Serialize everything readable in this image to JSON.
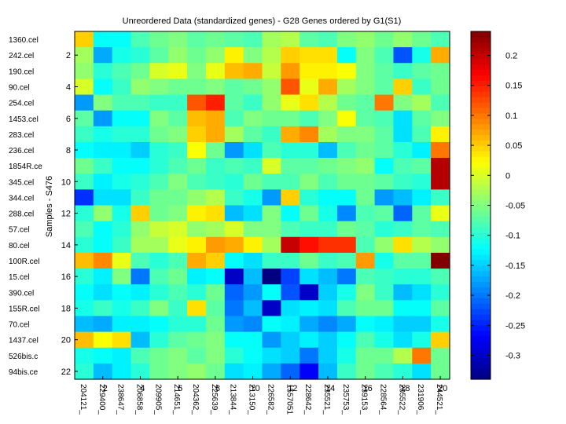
{
  "chart_data": {
    "type": "heatmap",
    "title": "Unreordered Data (standardized genes) - G28 Genes ordered by G1(S1)",
    "ylabel": "Samples - S476",
    "xlabel": "",
    "colormap": "jet",
    "clim": [
      -0.34,
      0.24
    ],
    "colorbar_ticks": [
      0.2,
      0.15,
      0.1,
      0.05,
      0,
      -0.05,
      -0.1,
      -0.15,
      -0.2,
      -0.25,
      -0.3
    ],
    "colorbar_tick_labels": [
      "0.2",
      "0.15",
      "0.1",
      "0.05",
      "0",
      "-0.05",
      "-0.1",
      "-0.15",
      "-0.2",
      "-0.25",
      "-0.3"
    ],
    "row_labels": [
      "1360.cel",
      "242.cel",
      "190.cel",
      "90.cel",
      "254.cel",
      "1453.cel",
      "283.cel",
      "236.cel",
      "1854R.ce",
      "345.cel",
      "344.cel",
      "288.cel",
      "57.cel",
      "80.cel",
      "100R.cel",
      "15.cel",
      "390.cel",
      "155R.cel",
      "70.cel",
      "1437.cel",
      "526bis.c",
      "94bis.ce"
    ],
    "row_tick_labels": [
      "2",
      "4",
      "6",
      "8",
      "10",
      "12",
      "14",
      "16",
      "18",
      "20",
      "22"
    ],
    "col_labels": [
      "204121_",
      "229400_",
      "238647_",
      "206858_",
      "209905_",
      "214651_",
      "204362_",
      "225639_",
      "213844_",
      "213150_",
      "226582_",
      "1557051",
      "228642_",
      "235521_",
      "235753_",
      "239153_",
      "228564_",
      "205522_",
      "231906_",
      "244521_"
    ],
    "col_tick_labels": [
      "2",
      "4",
      "6",
      "8",
      "10",
      "12",
      "14",
      "16",
      "18",
      "20"
    ],
    "values": [
      [
        0.05,
        -0.12,
        -0.12,
        -0.08,
        -0.06,
        -0.05,
        -0.07,
        -0.06,
        -0.07,
        -0.08,
        -0.03,
        -0.02,
        -0.07,
        -0.08,
        -0.05,
        -0.04,
        -0.06,
        -0.04,
        -0.06,
        -0.08
      ],
      [
        -0.03,
        -0.17,
        -0.11,
        -0.1,
        -0.07,
        -0.04,
        -0.06,
        -0.04,
        0.03,
        -0.05,
        -0.02,
        0.05,
        0.04,
        0.04,
        -0.12,
        -0.05,
        -0.08,
        -0.22,
        -0.11,
        0.07
      ],
      [
        -0.04,
        -0.1,
        -0.08,
        -0.06,
        0.0,
        0.01,
        -0.05,
        0.01,
        0.06,
        0.07,
        -0.01,
        0.08,
        0.03,
        0.03,
        0.02,
        -0.05,
        -0.07,
        -0.09,
        -0.07,
        -0.06
      ],
      [
        0.0,
        -0.12,
        -0.09,
        -0.04,
        -0.05,
        -0.06,
        -0.06,
        -0.05,
        -0.07,
        -0.06,
        -0.04,
        0.12,
        0.01,
        0.07,
        -0.03,
        -0.05,
        -0.07,
        0.05,
        -0.09,
        -0.06
      ],
      [
        -0.18,
        -0.05,
        -0.08,
        -0.08,
        -0.09,
        -0.09,
        0.12,
        0.15,
        -0.07,
        -0.09,
        -0.04,
        0.01,
        0.04,
        -0.02,
        -0.06,
        -0.07,
        0.1,
        -0.05,
        -0.03,
        -0.08
      ],
      [
        -0.07,
        -0.18,
        -0.12,
        -0.12,
        -0.05,
        -0.07,
        0.06,
        0.07,
        -0.08,
        -0.05,
        -0.06,
        -0.06,
        -0.08,
        -0.05,
        0.02,
        -0.07,
        -0.08,
        -0.14,
        -0.07,
        -0.05
      ],
      [
        -0.09,
        -0.11,
        -0.1,
        -0.1,
        -0.06,
        -0.05,
        0.05,
        0.07,
        -0.03,
        -0.07,
        -0.09,
        0.07,
        0.09,
        -0.03,
        -0.05,
        -0.05,
        -0.07,
        -0.14,
        -0.08,
        0.03
      ],
      [
        -0.12,
        -0.13,
        -0.13,
        -0.15,
        -0.1,
        -0.09,
        0.02,
        -0.06,
        -0.18,
        -0.14,
        -0.08,
        -0.1,
        -0.1,
        -0.16,
        -0.08,
        -0.06,
        -0.07,
        -0.1,
        -0.13,
        0.1
      ],
      [
        -0.06,
        -0.09,
        -0.12,
        -0.12,
        -0.1,
        -0.08,
        -0.06,
        -0.09,
        -0.08,
        -0.09,
        0.0,
        -0.07,
        -0.07,
        -0.06,
        -0.05,
        -0.04,
        -0.12,
        -0.08,
        -0.07,
        0.21
      ],
      [
        -0.09,
        -0.13,
        -0.11,
        -0.1,
        -0.08,
        -0.05,
        -0.08,
        -0.09,
        -0.1,
        -0.06,
        -0.08,
        -0.08,
        -0.05,
        -0.08,
        -0.06,
        -0.06,
        -0.07,
        -0.09,
        -0.1,
        0.21
      ],
      [
        -0.24,
        -0.14,
        -0.14,
        -0.09,
        -0.06,
        -0.06,
        -0.04,
        -0.02,
        -0.09,
        -0.11,
        -0.18,
        0.05,
        -0.1,
        -0.12,
        -0.12,
        -0.06,
        -0.18,
        -0.16,
        -0.13,
        -0.09
      ],
      [
        -0.1,
        -0.04,
        -0.11,
        0.05,
        -0.06,
        -0.05,
        0.03,
        0.04,
        -0.16,
        -0.14,
        -0.05,
        -0.12,
        -0.06,
        -0.11,
        -0.19,
        -0.08,
        -0.07,
        -0.21,
        -0.07,
        0.01
      ],
      [
        -0.08,
        -0.12,
        -0.1,
        -0.04,
        -0.01,
        0.0,
        -0.04,
        -0.03,
        0.0,
        -0.05,
        -0.05,
        -0.08,
        -0.09,
        -0.09,
        -0.06,
        -0.07,
        -0.1,
        -0.09,
        -0.07,
        -0.08
      ],
      [
        -0.1,
        -0.12,
        -0.09,
        -0.03,
        -0.03,
        0.01,
        0.03,
        0.08,
        0.07,
        0.03,
        -0.03,
        0.2,
        0.16,
        0.14,
        0.14,
        -0.08,
        -0.04,
        0.04,
        -0.02,
        -0.04
      ],
      [
        0.06,
        0.09,
        0.01,
        -0.08,
        -0.1,
        -0.08,
        0.07,
        0.05,
        -0.12,
        -0.14,
        -0.09,
        -0.09,
        -0.06,
        -0.09,
        -0.08,
        0.08,
        -0.11,
        -0.07,
        -0.07,
        0.24
      ],
      [
        -0.1,
        -0.13,
        -0.05,
        -0.2,
        -0.08,
        -0.06,
        -0.13,
        -0.12,
        -0.3,
        -0.16,
        -0.34,
        -0.23,
        -0.14,
        -0.16,
        -0.2,
        -0.08,
        -0.09,
        -0.1,
        -0.1,
        -0.08
      ],
      [
        -0.12,
        -0.14,
        -0.12,
        -0.13,
        -0.1,
        -0.08,
        -0.1,
        -0.06,
        -0.21,
        -0.18,
        -0.12,
        -0.22,
        -0.3,
        -0.15,
        -0.11,
        -0.05,
        -0.09,
        -0.16,
        -0.14,
        -0.1
      ],
      [
        -0.11,
        -0.09,
        -0.11,
        -0.09,
        -0.05,
        -0.09,
        0.04,
        -0.07,
        -0.2,
        -0.16,
        -0.3,
        -0.14,
        -0.13,
        -0.14,
        -0.08,
        -0.06,
        -0.06,
        -0.12,
        -0.12,
        -0.07
      ],
      [
        -0.16,
        -0.17,
        -0.13,
        -0.13,
        -0.12,
        -0.1,
        -0.1,
        -0.06,
        -0.18,
        -0.19,
        -0.12,
        -0.13,
        -0.17,
        -0.19,
        -0.17,
        -0.12,
        -0.13,
        -0.15,
        -0.15,
        -0.11
      ],
      [
        0.06,
        0.02,
        0.04,
        -0.16,
        -0.1,
        -0.07,
        -0.06,
        -0.05,
        -0.12,
        -0.12,
        -0.18,
        -0.15,
        -0.13,
        -0.15,
        -0.12,
        -0.08,
        -0.11,
        -0.14,
        -0.11,
        0.05
      ],
      [
        -0.11,
        -0.12,
        -0.13,
        -0.08,
        -0.06,
        -0.05,
        -0.07,
        -0.05,
        -0.1,
        -0.12,
        -0.14,
        -0.15,
        -0.2,
        -0.15,
        -0.11,
        -0.06,
        -0.06,
        -0.02,
        0.1,
        -0.06
      ],
      [
        -0.1,
        -0.16,
        -0.13,
        -0.1,
        -0.06,
        -0.05,
        -0.04,
        -0.06,
        -0.14,
        -0.13,
        -0.17,
        -0.21,
        -0.27,
        -0.16,
        -0.09,
        -0.06,
        -0.08,
        -0.1,
        -0.14,
        -0.06
      ]
    ]
  }
}
